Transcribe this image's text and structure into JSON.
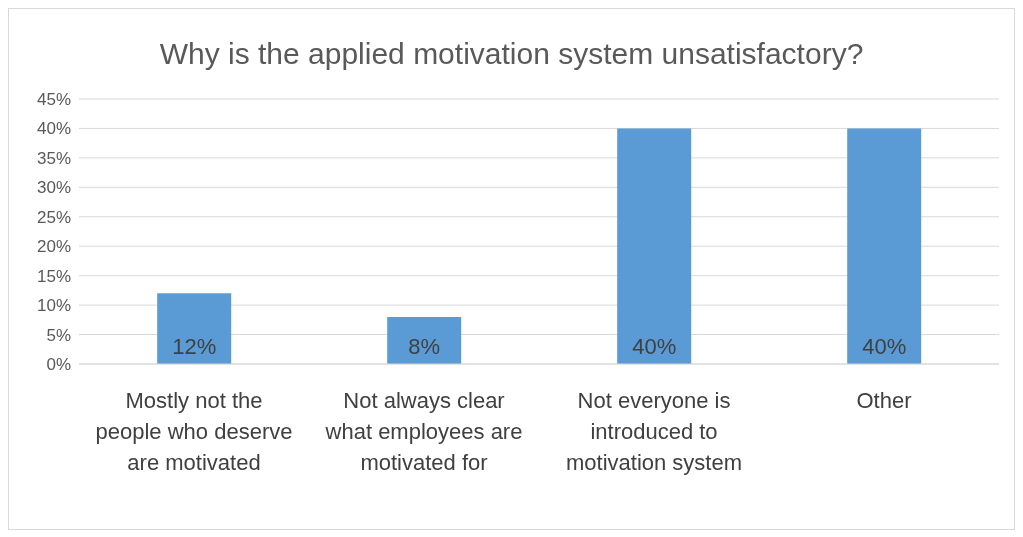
{
  "chart_data": {
    "type": "bar",
    "title": "Why is the applied motivation system unsatisfactory?",
    "categories": [
      "Mostly not the people who deserve are motivated",
      "Not always clear what employees are motivated for",
      "Not everyone is introduced to motivation system",
      "Other"
    ],
    "values": [
      12,
      8,
      40,
      40
    ],
    "value_labels": [
      "12%",
      "8%",
      "40%",
      "40%"
    ],
    "color": "#5b9bd5",
    "ylim": [
      0,
      45
    ],
    "yticks": [
      {
        "value": 0,
        "label": "0%"
      },
      {
        "value": 5,
        "label": "5%"
      },
      {
        "value": 10,
        "label": "10%"
      },
      {
        "value": 15,
        "label": "15%"
      },
      {
        "value": 20,
        "label": "20%"
      },
      {
        "value": 25,
        "label": "25%"
      },
      {
        "value": 30,
        "label": "30%"
      },
      {
        "value": 35,
        "label": "35%"
      },
      {
        "value": 40,
        "label": "40%"
      },
      {
        "value": 45,
        "label": "45%"
      }
    ],
    "grid": "y"
  }
}
